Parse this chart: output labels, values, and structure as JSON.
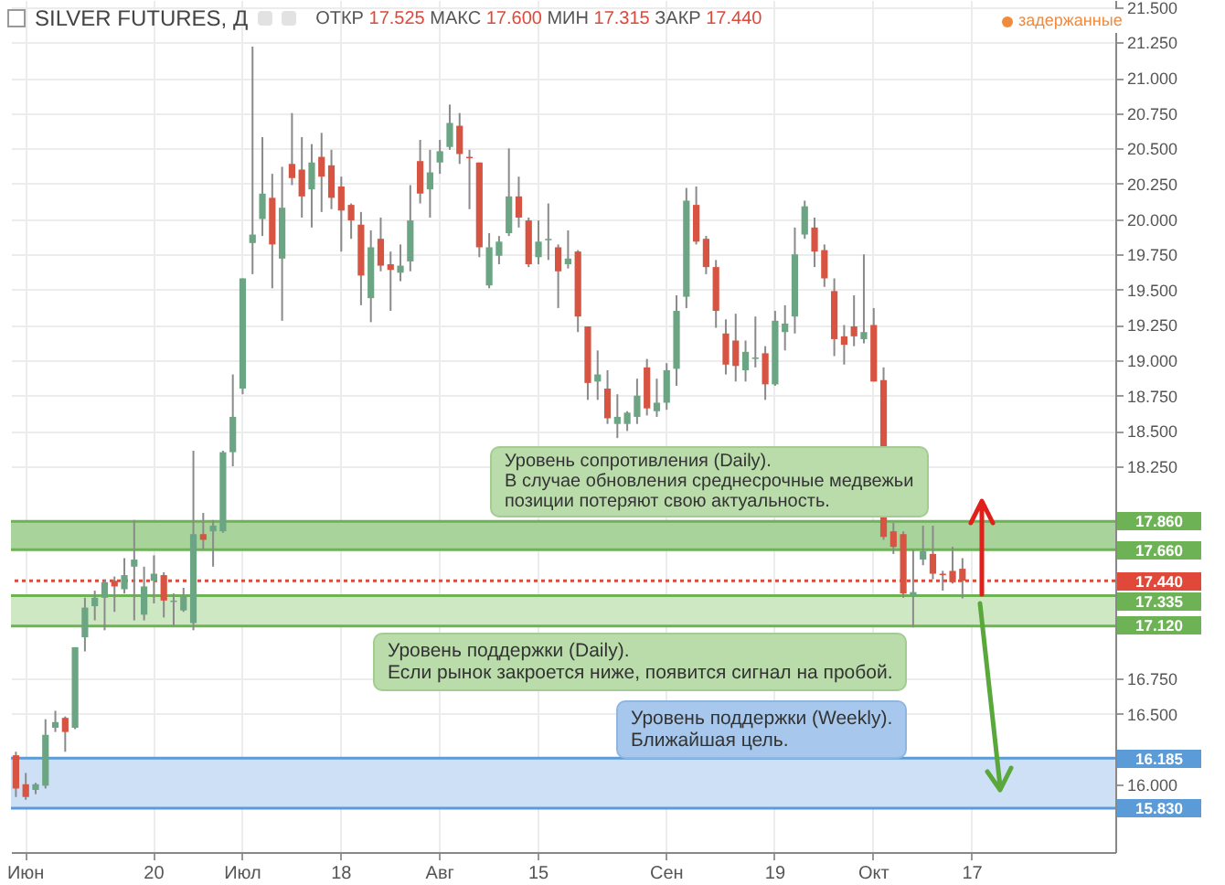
{
  "chart_data": {
    "type": "candlestick",
    "title": "SILVER FUTURES, Д",
    "subtitle": "ОТКР 17.525 МАКС 17.600 МИН 17.315 ЗАКР 17.440",
    "categories": [
      null,
      "Июн",
      null,
      null,
      null,
      null,
      null,
      null,
      null,
      null,
      null,
      null,
      null,
      null,
      "20",
      null,
      null,
      null,
      null,
      null,
      null,
      null,
      null,
      "Июл",
      null,
      null,
      null,
      null,
      null,
      null,
      null,
      null,
      null,
      "18",
      null,
      null,
      null,
      null,
      null,
      null,
      null,
      null,
      null,
      "Авг",
      null,
      null,
      null,
      null,
      null,
      null,
      null,
      null,
      null,
      "15",
      null,
      null,
      null,
      null,
      null,
      null,
      null,
      null,
      null,
      null,
      null,
      null,
      "Сен",
      null,
      null,
      null,
      null,
      null,
      null,
      null,
      null,
      null,
      null,
      "19",
      null,
      null,
      null,
      null,
      null,
      null,
      null,
      null,
      null,
      "Окт",
      null,
      null,
      null,
      null,
      null,
      null,
      null,
      null,
      null,
      "17",
      null,
      null,
      null,
      null,
      null,
      null,
      null,
      null,
      null,
      null,
      null,
      null,
      null,
      null
    ],
    "ohlc": [
      [
        16.205,
        16.23,
        15.91,
        15.97
      ],
      [
        16.0,
        16.08,
        15.89,
        15.91
      ],
      [
        15.96,
        16.01,
        15.93,
        16.0
      ],
      [
        15.99,
        16.46,
        15.97,
        16.35
      ],
      [
        16.4,
        16.52,
        16.37,
        16.44
      ],
      [
        16.47,
        16.48,
        16.23,
        16.37
      ],
      [
        16.4,
        16.97,
        16.39,
        16.97
      ],
      [
        17.04,
        17.32,
        16.94,
        17.25
      ],
      [
        17.26,
        17.37,
        17.16,
        17.32
      ],
      [
        17.32,
        17.45,
        17.09,
        17.43
      ],
      [
        17.44,
        17.47,
        17.22,
        17.4
      ],
      [
        17.38,
        17.6,
        17.35,
        17.48
      ],
      [
        17.54,
        17.87,
        17.16,
        17.59
      ],
      [
        17.2,
        17.54,
        17.16,
        17.4
      ],
      [
        17.44,
        17.62,
        17.28,
        17.49
      ],
      [
        17.48,
        17.5,
        17.18,
        17.3
      ],
      [
        17.29,
        17.35,
        17.12,
        17.3
      ],
      [
        17.23,
        17.39,
        17.22,
        17.33
      ],
      [
        17.14,
        18.36,
        17.09,
        17.77
      ],
      [
        17.77,
        17.92,
        17.66,
        17.73
      ],
      [
        17.79,
        17.87,
        17.54,
        17.83
      ],
      [
        17.79,
        18.36,
        17.78,
        18.35
      ],
      [
        18.35,
        18.9,
        18.25,
        18.6
      ],
      [
        18.8,
        19.58,
        18.76,
        19.58
      ],
      [
        19.83,
        21.22,
        19.61,
        19.89
      ],
      [
        20.0,
        20.58,
        19.88,
        20.18
      ],
      [
        20.15,
        20.32,
        19.51,
        19.82
      ],
      [
        19.72,
        20.37,
        19.28,
        20.08
      ],
      [
        20.39,
        20.75,
        20.24,
        20.29
      ],
      [
        20.35,
        20.58,
        20.01,
        20.16
      ],
      [
        20.21,
        20.53,
        19.94,
        20.4
      ],
      [
        20.44,
        20.61,
        20.05,
        20.3
      ],
      [
        20.38,
        20.49,
        20.07,
        20.15
      ],
      [
        20.23,
        20.3,
        19.77,
        20.06
      ],
      [
        20.1,
        20.11,
        19.86,
        19.99
      ],
      [
        19.96,
        20.05,
        19.39,
        19.6
      ],
      [
        19.44,
        19.92,
        19.27,
        19.8
      ],
      [
        19.86,
        20.01,
        19.63,
        19.67
      ],
      [
        19.68,
        19.77,
        19.35,
        19.64
      ],
      [
        19.62,
        19.82,
        19.56,
        19.67
      ],
      [
        19.7,
        20.24,
        19.63,
        19.99
      ],
      [
        20.41,
        20.56,
        20.11,
        20.18
      ],
      [
        20.21,
        20.49,
        20.01,
        20.33
      ],
      [
        20.4,
        20.56,
        20.32,
        20.48
      ],
      [
        20.51,
        20.81,
        20.49,
        20.68
      ],
      [
        20.66,
        20.75,
        20.39,
        20.46
      ],
      [
        20.44,
        20.49,
        20.07,
        20.43
      ],
      [
        20.4,
        20.4,
        19.73,
        19.8
      ],
      [
        19.53,
        19.9,
        19.51,
        19.8
      ],
      [
        19.74,
        19.88,
        19.68,
        19.84
      ],
      [
        19.9,
        20.5,
        19.88,
        20.16
      ],
      [
        20.16,
        20.3,
        19.94,
        20.01
      ],
      [
        19.99,
        20.01,
        19.66,
        19.68
      ],
      [
        19.73,
        19.99,
        19.68,
        19.84
      ],
      [
        19.85,
        20.11,
        19.71,
        19.86
      ],
      [
        19.8,
        19.82,
        19.37,
        19.63
      ],
      [
        19.68,
        19.92,
        19.65,
        19.72
      ],
      [
        19.77,
        19.78,
        19.2,
        19.31
      ],
      [
        19.24,
        19.24,
        18.72,
        18.84
      ],
      [
        18.85,
        19.07,
        18.72,
        18.9
      ],
      [
        18.8,
        18.93,
        18.55,
        18.59
      ],
      [
        18.55,
        18.76,
        18.45,
        18.6
      ],
      [
        18.55,
        18.64,
        18.5,
        18.63
      ],
      [
        18.6,
        18.87,
        18.55,
        18.75
      ],
      [
        18.95,
        19.01,
        18.61,
        18.66
      ],
      [
        18.64,
        18.87,
        18.6,
        18.7
      ],
      [
        18.7,
        18.98,
        18.65,
        18.93
      ],
      [
        18.94,
        19.46,
        18.82,
        19.35
      ],
      [
        19.45,
        20.22,
        19.37,
        20.13
      ],
      [
        20.1,
        20.23,
        19.82,
        19.84
      ],
      [
        19.86,
        19.88,
        19.61,
        19.66
      ],
      [
        19.66,
        19.71,
        19.23,
        19.35
      ],
      [
        19.19,
        19.29,
        18.9,
        18.97
      ],
      [
        19.14,
        19.33,
        18.85,
        18.96
      ],
      [
        18.93,
        19.14,
        18.85,
        19.06
      ],
      [
        19.01,
        19.31,
        18.95,
        19.02
      ],
      [
        19.05,
        19.1,
        18.72,
        18.83
      ],
      [
        18.83,
        19.35,
        18.82,
        19.28
      ],
      [
        19.2,
        19.39,
        19.07,
        19.26
      ],
      [
        19.31,
        19.94,
        19.19,
        19.75
      ],
      [
        19.89,
        20.13,
        19.86,
        20.09
      ],
      [
        19.94,
        20.01,
        19.66,
        19.77
      ],
      [
        19.78,
        19.82,
        19.52,
        19.58
      ],
      [
        19.49,
        19.58,
        19.03,
        19.15
      ],
      [
        19.17,
        19.25,
        18.97,
        19.11
      ],
      [
        19.24,
        19.46,
        19.1,
        19.17
      ],
      [
        19.15,
        19.75,
        19.12,
        19.2
      ],
      [
        19.25,
        19.37,
        18.85,
        18.85
      ],
      [
        18.86,
        18.95,
        17.73,
        17.75
      ],
      [
        17.79,
        17.85,
        17.63,
        17.68
      ],
      [
        17.77,
        17.79,
        17.32,
        17.35
      ],
      [
        17.33,
        17.66,
        17.11,
        17.36
      ],
      [
        17.59,
        17.83,
        17.55,
        17.65
      ],
      [
        17.63,
        17.83,
        17.45,
        17.49
      ],
      [
        17.49,
        17.51,
        17.37,
        17.48
      ],
      [
        17.51,
        17.68,
        17.42,
        17.43
      ],
      [
        17.525,
        17.6,
        17.315,
        17.44
      ],
      null,
      null,
      null,
      null,
      null,
      null,
      null,
      null,
      null,
      null,
      null,
      null,
      null,
      null,
      null
    ],
    "colors": [
      "#d75442",
      "#d75442",
      "#6ba583",
      "#6ba583",
      "#6ba583",
      "#d75442",
      "#6ba583",
      "#6ba583",
      "#6ba583",
      "#6ba583",
      "#d75442",
      "#6ba583",
      "#6ba583",
      "#6ba583",
      "#6ba583",
      "#d75442",
      "#6ba583",
      "#6ba583",
      "#6ba583",
      "#d75442",
      "#6ba583",
      "#6ba583",
      "#6ba583",
      "#6ba583",
      "#6ba583",
      "#6ba583",
      "#d75442",
      "#6ba583",
      "#d75442",
      "#d75442",
      "#6ba583",
      "#d75442",
      "#d75442",
      "#d75442",
      "#d75442",
      "#d75442",
      "#6ba583",
      "#d75442",
      "#d75442",
      "#6ba583",
      "#6ba583",
      "#d75442",
      "#6ba583",
      "#6ba583",
      "#6ba583",
      "#d75442",
      "#d75442",
      "#d75442",
      "#6ba583",
      "#6ba583",
      "#6ba583",
      "#d75442",
      "#d75442",
      "#6ba583",
      "#6ba583",
      "#d75442",
      "#6ba583",
      "#d75442",
      "#d75442",
      "#6ba583",
      "#d75442",
      "#6ba583",
      "#6ba583",
      "#6ba583",
      "#d75442",
      "#6ba583",
      "#6ba583",
      "#6ba583",
      "#6ba583",
      "#d75442",
      "#d75442",
      "#d75442",
      "#d75442",
      "#d75442",
      "#6ba583",
      "#6ba583",
      "#d75442",
      "#6ba583",
      "#6ba583",
      "#6ba583",
      "#6ba583",
      "#d75442",
      "#d75442",
      "#d75442",
      "#d75442",
      "#d75442",
      "#6ba583",
      "#d75442",
      "#d75442",
      "#d75442",
      "#d75442",
      "#6ba583",
      "#6ba583",
      "#d75442",
      "#d75442",
      "#d75442",
      "#d75442",
      null,
      null,
      null,
      null,
      null,
      null,
      null,
      null,
      null,
      null,
      null,
      null,
      null,
      null,
      null
    ],
    "ylim": [
      15.52,
      21.55
    ],
    "yticks": [
      {
        "value": 16,
        "label": "16.000"
      },
      {
        "value": 16.5,
        "label": "16.500"
      },
      {
        "value": 16.75,
        "label": "16.750"
      },
      {
        "value": 18.25,
        "label": "18.250"
      },
      {
        "value": 18.5,
        "label": "18.500"
      },
      {
        "value": 18.75,
        "label": "18.750"
      },
      {
        "value": 19,
        "label": "19.000"
      },
      {
        "value": 19.25,
        "label": "19.250"
      },
      {
        "value": 19.5,
        "label": "19.500"
      },
      {
        "value": 19.75,
        "label": "19.750"
      },
      {
        "value": 20,
        "label": "20.000"
      },
      {
        "value": 20.25,
        "label": "20.250"
      },
      {
        "value": 20.5,
        "label": "20.500"
      },
      {
        "value": 20.75,
        "label": "20.750"
      },
      {
        "value": 21,
        "label": "21.000"
      },
      {
        "value": 21.25,
        "label": "21.250"
      },
      {
        "value": 21.5,
        "label": "21.500"
      }
    ],
    "grid": true,
    "bands": [
      {
        "axis": "y",
        "from": 17.66,
        "to": 17.86,
        "color": "#a8d39a"
      },
      {
        "axis": "y",
        "from": 17.12,
        "to": 17.335,
        "color": "#cfe8c4"
      },
      {
        "axis": "y",
        "from": 15.83,
        "to": 16.185,
        "color": "#cde0f5"
      }
    ],
    "ref_lines": [
      {
        "axis": "y",
        "value": 17.86,
        "label": "17.860",
        "color": "#6db356",
        "line_style": "solid"
      },
      {
        "axis": "y",
        "value": 17.66,
        "label": "17.660",
        "color": "#6db356",
        "line_style": "solid"
      },
      {
        "axis": "y",
        "value": 17.44,
        "label": "17.440",
        "color": "#e0483a",
        "line_style": "dotted"
      },
      {
        "axis": "y",
        "value": 17.335,
        "label": "17.335",
        "color": "#6db356",
        "line_style": "solid"
      },
      {
        "axis": "y",
        "value": 17.12,
        "label": "17.120",
        "color": "#6db356",
        "line_style": "solid"
      },
      {
        "axis": "y",
        "value": 16.185,
        "label": "16.185",
        "color": "#5b9bd8",
        "line_style": "solid"
      },
      {
        "axis": "y",
        "value": 15.83,
        "label": "15.830",
        "color": "#5b9bd8",
        "line_style": "solid"
      }
    ],
    "annotations": [
      "задержанные",
      "Уровень сопротивления (Daily).\nВ случае обновления среднесрочные медвежьи\nпозиции потеряют свою актуальность.",
      "Уровень поддержки (Daily).\nЕсли рынок закроется ниже, появится сигнал на пробой.",
      "Уровень поддержки (Weekly).\nБлижайшая цель."
    ]
  }
}
